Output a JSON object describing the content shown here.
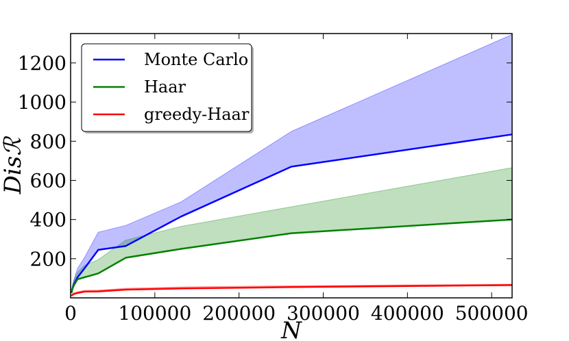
{
  "chart_data": {
    "type": "line",
    "xlabel": "N",
    "ylabel": "Disℛ",
    "xlim": [
      0,
      524288
    ],
    "ylim": [
      0,
      1350
    ],
    "xticks": [
      0,
      100000,
      200000,
      300000,
      400000,
      500000
    ],
    "xtick_labels": [
      "0",
      "100000",
      "200000",
      "300000",
      "400000",
      "500000"
    ],
    "yticks": [
      200,
      400,
      600,
      800,
      1000,
      1200
    ],
    "ytick_labels": [
      "200",
      "400",
      "600",
      "800",
      "1000",
      "1200"
    ],
    "grid": false,
    "legend_position": "top-left",
    "x": [
      1024,
      2048,
      4096,
      8192,
      16384,
      32768,
      65536,
      131072,
      262144,
      524288
    ],
    "series": [
      {
        "name": "Monte Carlo",
        "color": "#0000ff",
        "band_color": "#0000ff",
        "values": [
          25,
          45,
          70,
          105,
          150,
          245,
          265,
          415,
          670,
          835
        ],
        "upper": [
          35,
          60,
          95,
          150,
          205,
          335,
          370,
          490,
          850,
          1345
        ]
      },
      {
        "name": "Haar",
        "color": "#008000",
        "band_color": "#008000",
        "values": [
          25,
          45,
          65,
          95,
          105,
          125,
          205,
          250,
          330,
          400
        ],
        "upper": [
          35,
          60,
          90,
          130,
          165,
          195,
          295,
          365,
          465,
          665
        ]
      },
      {
        "name": "greedy-Haar",
        "color": "#ff0000",
        "band_color": "#ff0000",
        "values": [
          10,
          15,
          20,
          25,
          32,
          33,
          42,
          48,
          55,
          65
        ],
        "upper": [
          14,
          20,
          26,
          31,
          38,
          39,
          49,
          56,
          62,
          70
        ]
      }
    ]
  }
}
